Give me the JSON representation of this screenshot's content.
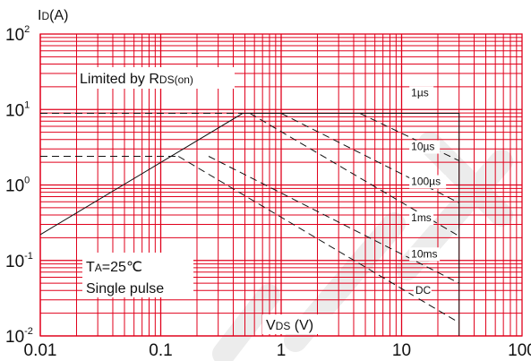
{
  "chart_data": {
    "type": "line",
    "title": "",
    "ylabel": {
      "main": "I",
      "sub": "D",
      "unit": "(A)"
    },
    "xlabel": {
      "main": "V",
      "sub": "DS",
      "unit": " (V)"
    },
    "x_scale": "log",
    "y_scale": "log",
    "xlim": [
      0.01,
      100
    ],
    "ylim": [
      0.01,
      100
    ],
    "x_ticks": [
      {
        "value": 0.01,
        "label": "0.01"
      },
      {
        "value": 0.1,
        "label": "0.1"
      },
      {
        "value": 1,
        "label": "1"
      },
      {
        "value": 10,
        "label": "10"
      },
      {
        "value": 100,
        "label": "100"
      }
    ],
    "y_ticks": [
      {
        "value": 0.01,
        "base": "10",
        "exp": "-2"
      },
      {
        "value": 0.1,
        "base": "10",
        "exp": "-1"
      },
      {
        "value": 1,
        "base": "10",
        "exp": "0"
      },
      {
        "value": 10,
        "base": "10",
        "exp": "1"
      },
      {
        "value": 100,
        "base": "10",
        "exp": "2"
      }
    ],
    "grid": true,
    "grid_color": "#e0001b",
    "annotations": {
      "limited": {
        "text": "Limited by R",
        "sub": "DS(on)"
      },
      "condition_temp": {
        "pre": "T",
        "sub": "A",
        "post": "=25℃"
      },
      "condition_pulse": "Single pulse"
    },
    "series": [
      {
        "name": "1µs",
        "style": "solid",
        "points": [
          [
            0.01,
            0.22
          ],
          [
            0.48,
            8.9
          ],
          [
            30,
            8.9
          ],
          [
            30,
            0.01
          ]
        ]
      },
      {
        "name": "10µs",
        "style": "dashed",
        "points": [
          [
            4.5,
            8.9
          ],
          [
            30,
            2.1
          ]
        ]
      },
      {
        "name": "100µs",
        "style": "dashed",
        "points": [
          [
            1.0,
            8.9
          ],
          [
            30,
            0.58
          ]
        ]
      },
      {
        "name": "1ms",
        "style": "dashed",
        "points": [
          [
            0.55,
            8.9
          ],
          [
            30,
            0.21
          ]
        ]
      },
      {
        "name": "10ms",
        "style": "dashed",
        "points": [
          [
            0.25,
            2.4
          ],
          [
            30,
            0.05
          ]
        ]
      },
      {
        "name": "DC",
        "style": "dashed",
        "points": [
          [
            0.14,
            2.4
          ],
          [
            30,
            0.015
          ]
        ]
      },
      {
        "name": "",
        "style": "dashed",
        "points": [
          [
            0.01,
            8.9
          ],
          [
            0.48,
            8.9
          ]
        ]
      },
      {
        "name": "",
        "style": "dashed",
        "points": [
          [
            0.01,
            2.4
          ],
          [
            0.14,
            2.4
          ]
        ]
      }
    ],
    "curve_labels": [
      {
        "text": "1µs",
        "x": 12,
        "y": 15
      },
      {
        "text": "10µs",
        "x": 12,
        "y": 2.9
      },
      {
        "text": "100µs",
        "x": 12,
        "y": 1.0
      },
      {
        "text": "1ms",
        "x": 12,
        "y": 0.33
      },
      {
        "text": "10ms",
        "x": 12,
        "y": 0.11
      },
      {
        "text": "DC",
        "x": 13,
        "y": 0.036
      }
    ]
  }
}
